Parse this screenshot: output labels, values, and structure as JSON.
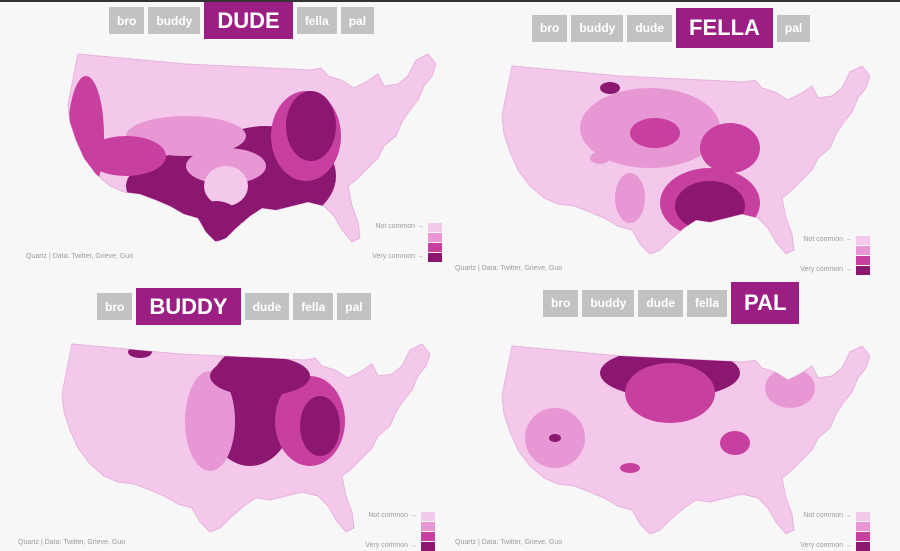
{
  "tabs": [
    "bro",
    "buddy",
    "dude",
    "fella",
    "pal"
  ],
  "credit": "Quartz | Data: Twitter, Grieve, Guo",
  "legend": {
    "top_label": "Not common →",
    "bottom_label": "Very common →",
    "colors": [
      "#f3c8ea",
      "#e897d5",
      "#c8409f",
      "#8c1770"
    ]
  },
  "panels": [
    {
      "active": "dude",
      "active_label": "DUDE"
    },
    {
      "active": "fella",
      "active_label": "FELLA"
    },
    {
      "active": "buddy",
      "active_label": "BUDDY"
    },
    {
      "active": "pal",
      "active_label": "PAL"
    }
  ]
}
